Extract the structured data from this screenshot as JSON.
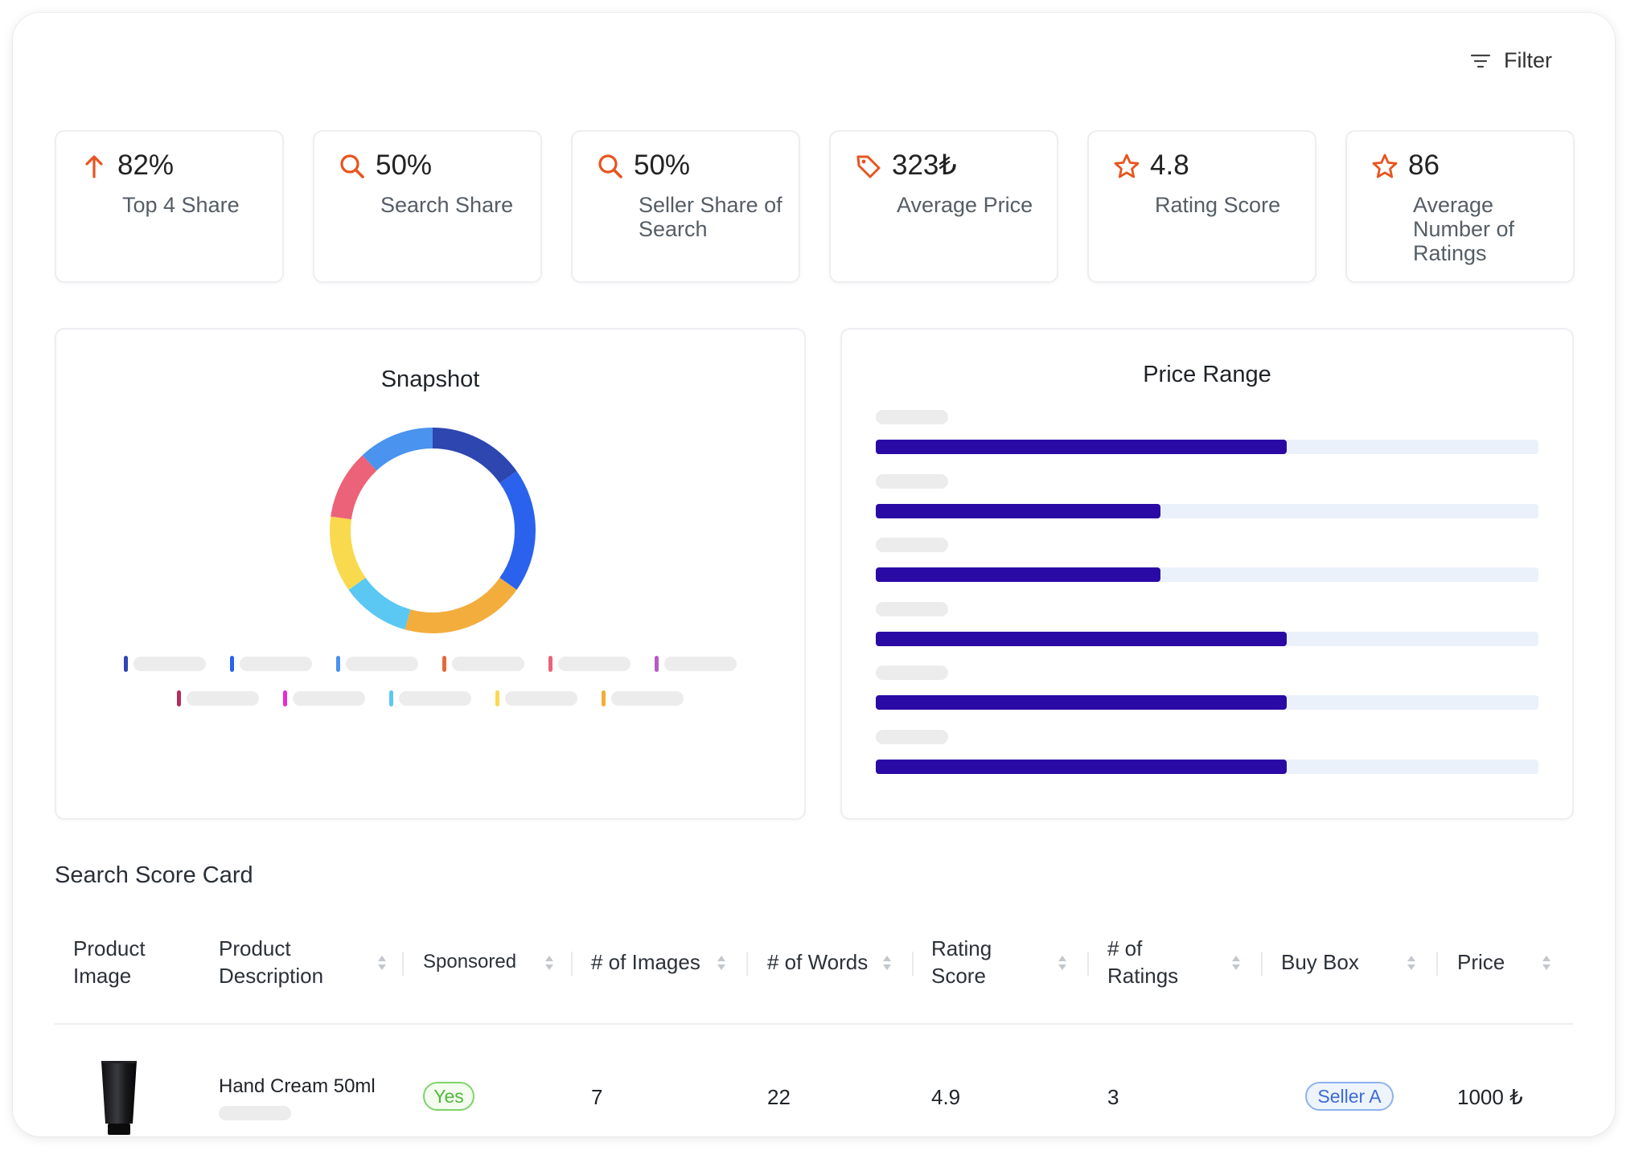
{
  "filter": {
    "label": "Filter",
    "icon": "filter-icon"
  },
  "kpis": [
    {
      "icon": "arrow-up-icon",
      "value": "82%",
      "label": "Top 4 Share"
    },
    {
      "icon": "search-icon",
      "value": "50%",
      "label": "Search Share"
    },
    {
      "icon": "search-icon",
      "value": "50%",
      "label": "Seller Share of Search"
    },
    {
      "icon": "price-tag-icon",
      "value": "323₺",
      "label": "Average Price"
    },
    {
      "icon": "star-icon",
      "value": "4.8",
      "label": "Rating Score"
    },
    {
      "icon": "star-icon",
      "value": "86",
      "label": "Average Number of Ratings"
    }
  ],
  "accent_color": "#e8541e",
  "snapshot": {
    "title": "Snapshot",
    "chart_data": {
      "type": "pie",
      "donut": true,
      "slices": [
        {
          "value": 14,
          "color": "#2d46b0"
        },
        {
          "value": 18,
          "color": "#2a62ee"
        },
        {
          "value": 18,
          "color": "#f3ad3c"
        },
        {
          "value": 10,
          "color": "#5bc7f3"
        },
        {
          "value": 11,
          "color": "#f9d94e"
        },
        {
          "value": 10,
          "color": "#ec6278"
        },
        {
          "value": 11,
          "color": "#4a93ee"
        }
      ],
      "legend_colors": [
        "#2d46b0",
        "#2a62ee",
        "#4a93ee",
        "#e46a3a",
        "#ec6278",
        "#b45bc4",
        "#b32d5b",
        "#e82ad6",
        "#5bc7f3",
        "#f9d94e",
        "#f3ad3c"
      ]
    }
  },
  "price_range": {
    "title": "Price Range",
    "chart_data": {
      "type": "bar",
      "orientation": "horizontal",
      "values": [
        62,
        43,
        43,
        62,
        62,
        62
      ],
      "max": 100,
      "bar_color": "#2a0aa5",
      "track_color": "#eaf1fb"
    }
  },
  "scorecard": {
    "title": "Search Score Card",
    "columns": [
      "Product Image",
      "Product Description",
      "Sponsored",
      "# of Images",
      "# of Words",
      "Rating Score",
      "# of Ratings",
      "Buy Box",
      "Price"
    ],
    "rows": [
      {
        "image_icon": "product-tube-image",
        "description": "Hand Cream 50ml",
        "sponsored": "Yes",
        "images": "7",
        "words": "22",
        "rating": "4.9",
        "ratings_count": "3",
        "buy_box": "Seller A",
        "price": "1000 ₺"
      }
    ]
  }
}
